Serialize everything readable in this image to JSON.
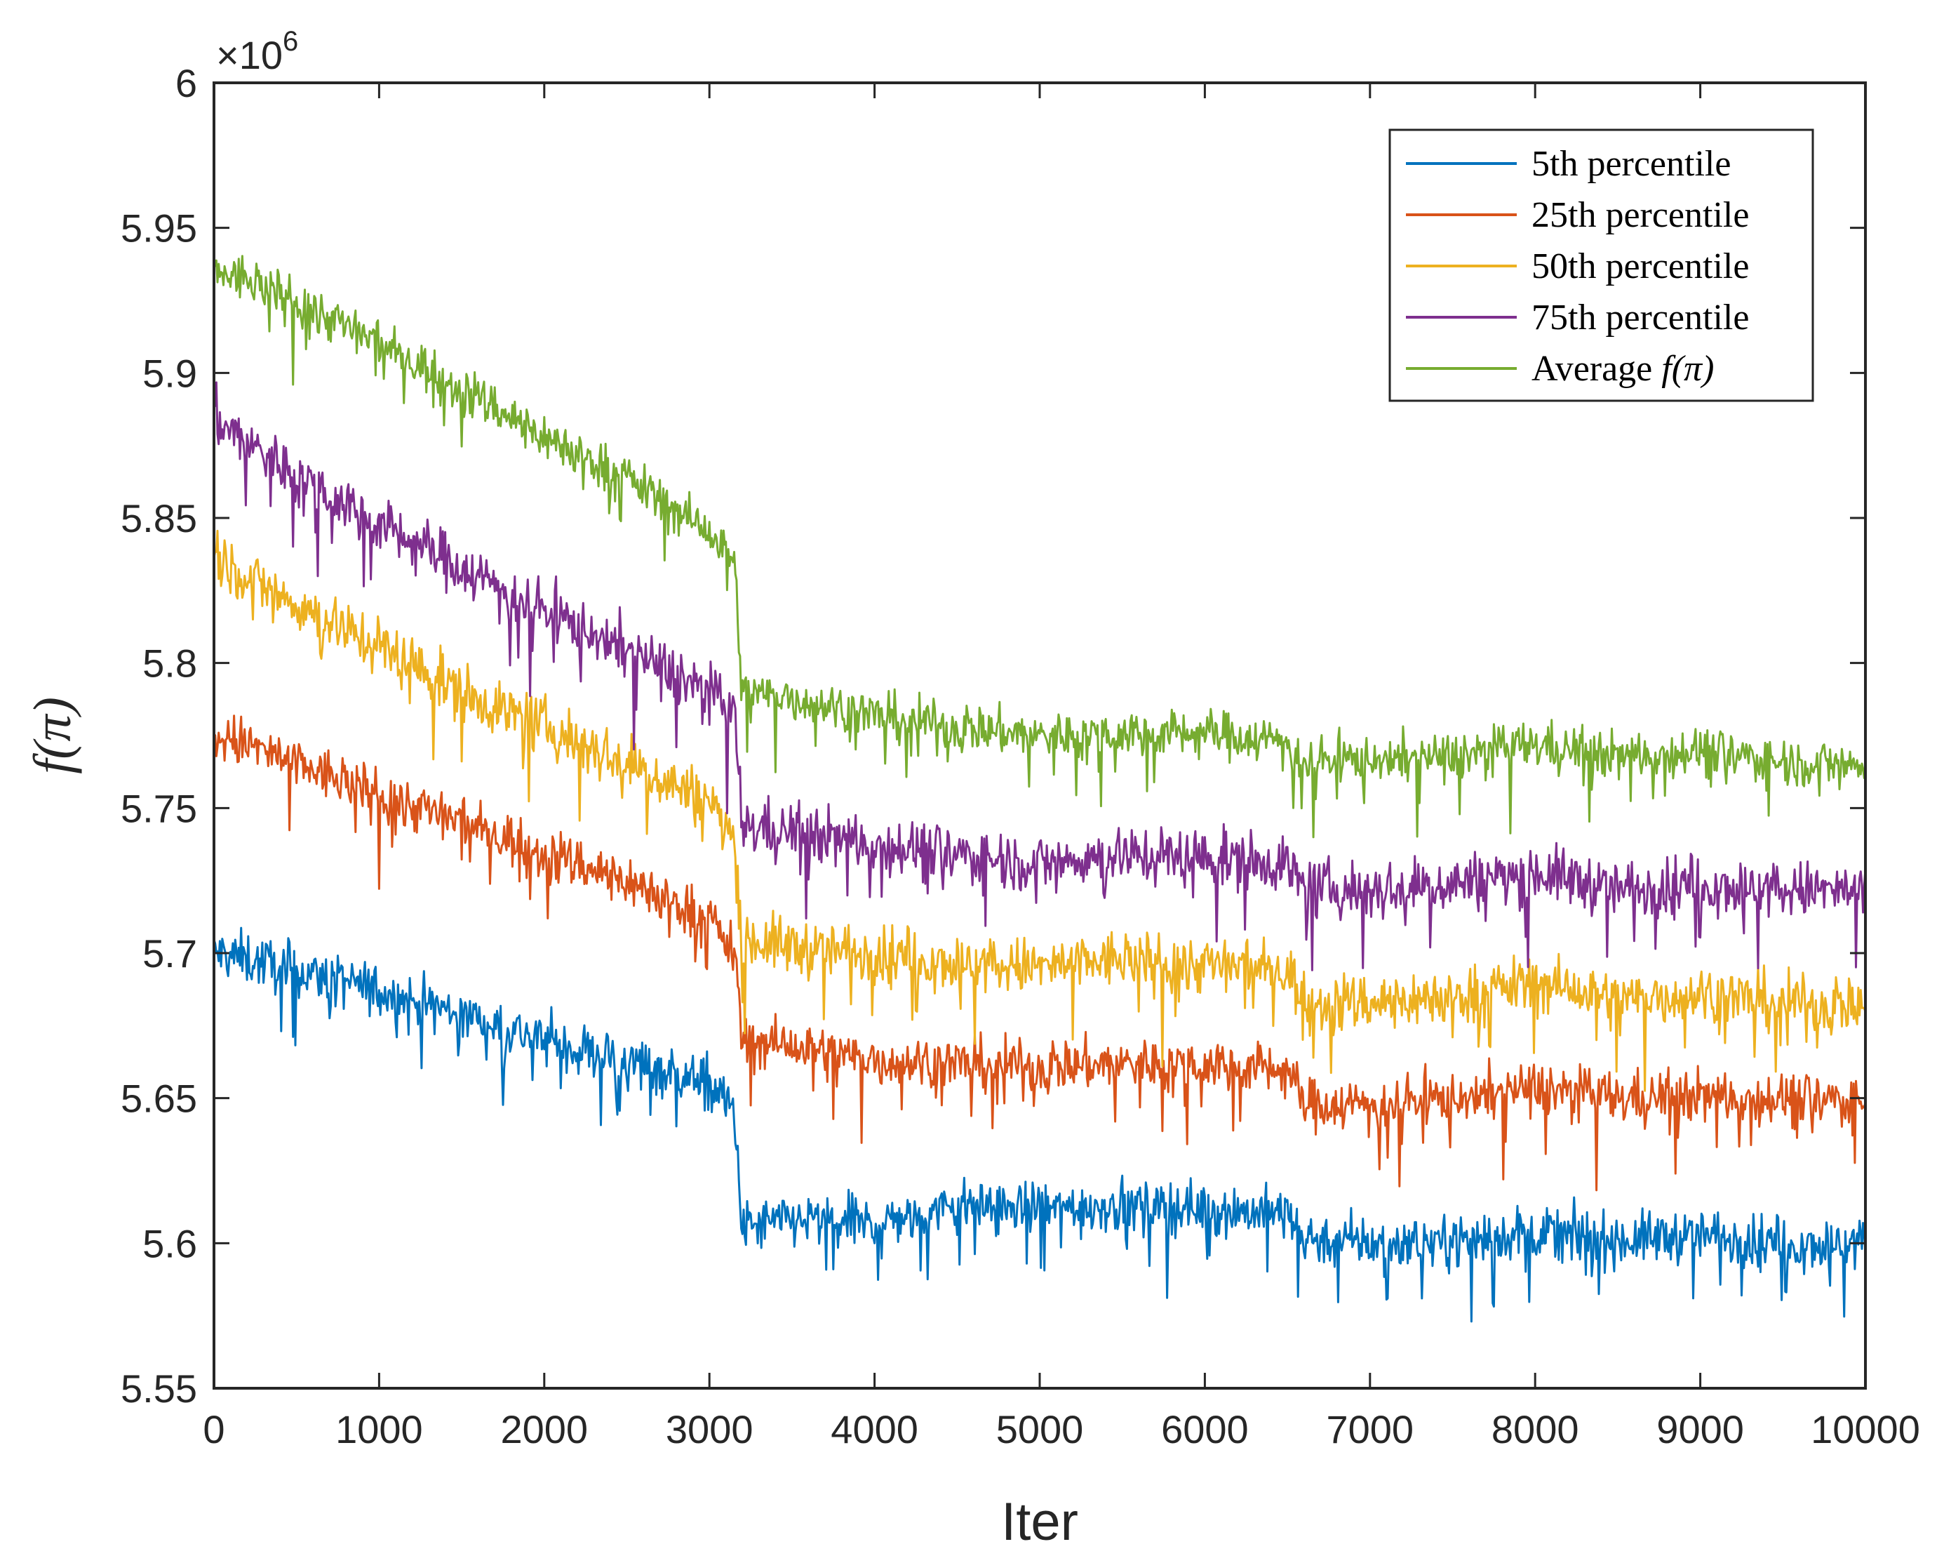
{
  "chart_data": {
    "type": "line",
    "title": "",
    "xlabel": "Iter",
    "ylabel": "f(π)",
    "y_exponent_label": "×10",
    "y_exponent_power": "6",
    "xlim": [
      0,
      10000
    ],
    "ylim": [
      5.55,
      6.0
    ],
    "x_ticks": [
      0,
      1000,
      2000,
      3000,
      4000,
      5000,
      6000,
      7000,
      8000,
      9000,
      10000
    ],
    "x_tick_labels": [
      "0",
      "1000",
      "2000",
      "3000",
      "4000",
      "5000",
      "6000",
      "7000",
      "8000",
      "9000",
      "10000"
    ],
    "y_ticks": [
      5.55,
      5.6,
      5.65,
      5.7,
      5.75,
      5.8,
      5.85,
      5.9,
      5.95,
      6.0
    ],
    "y_tick_labels": [
      "5.55",
      "5.6",
      "5.65",
      "5.7",
      "5.75",
      "5.8",
      "5.85",
      "5.9",
      "5.95",
      "6"
    ],
    "grid": false,
    "legend_position": "top-right",
    "x": [
      0,
      200,
      500,
      1000,
      1500,
      2000,
      2500,
      3000,
      3150,
      3200,
      3500,
      4000,
      4500,
      5000,
      5500,
      6000,
      6500,
      6600,
      7000,
      7500,
      8000,
      8500,
      9000,
      9500,
      10000
    ],
    "series": [
      {
        "name": "5th percentile",
        "label_text": "5th percentile",
        "color": "#0072BD",
        "noise": 0.01,
        "values": [
          5.7,
          5.698,
          5.694,
          5.687,
          5.679,
          5.67,
          5.663,
          5.655,
          5.645,
          5.605,
          5.608,
          5.607,
          5.613,
          5.612,
          5.613,
          5.612,
          5.61,
          5.602,
          5.6,
          5.601,
          5.604,
          5.601,
          5.603,
          5.6,
          5.6
        ]
      },
      {
        "name": "25th percentile",
        "label_text": "25th percentile",
        "color": "#D95319",
        "noise": 0.01,
        "values": [
          5.775,
          5.772,
          5.765,
          5.755,
          5.745,
          5.735,
          5.725,
          5.712,
          5.7,
          5.67,
          5.668,
          5.663,
          5.662,
          5.661,
          5.662,
          5.662,
          5.66,
          5.648,
          5.648,
          5.65,
          5.654,
          5.65,
          5.651,
          5.65,
          5.649
        ]
      },
      {
        "name": "50th percentile",
        "label_text": "50th percentile",
        "color": "#EDB120",
        "noise": 0.011,
        "values": [
          5.838,
          5.83,
          5.82,
          5.806,
          5.79,
          5.778,
          5.766,
          5.752,
          5.74,
          5.705,
          5.702,
          5.7,
          5.697,
          5.695,
          5.698,
          5.696,
          5.694,
          5.684,
          5.683,
          5.685,
          5.69,
          5.684,
          5.686,
          5.683,
          5.682
        ]
      },
      {
        "name": "75th percentile",
        "label_text": "75th percentile",
        "color": "#7E2F8E",
        "noise": 0.011,
        "values": [
          5.885,
          5.876,
          5.865,
          5.848,
          5.833,
          5.818,
          5.805,
          5.79,
          5.782,
          5.744,
          5.742,
          5.738,
          5.734,
          5.731,
          5.734,
          5.733,
          5.731,
          5.722,
          5.722,
          5.724,
          5.728,
          5.722,
          5.724,
          5.722,
          5.721
        ]
      },
      {
        "name": "Average f(π)",
        "label_text": "Average ",
        "label_math": "f(π)",
        "color": "#77AC30",
        "noise": 0.009,
        "values": [
          5.935,
          5.932,
          5.925,
          5.91,
          5.895,
          5.878,
          5.864,
          5.845,
          5.835,
          5.79,
          5.788,
          5.782,
          5.778,
          5.775,
          5.776,
          5.776,
          5.773,
          5.766,
          5.767,
          5.768,
          5.772,
          5.768,
          5.77,
          5.766,
          5.765
        ]
      }
    ]
  }
}
